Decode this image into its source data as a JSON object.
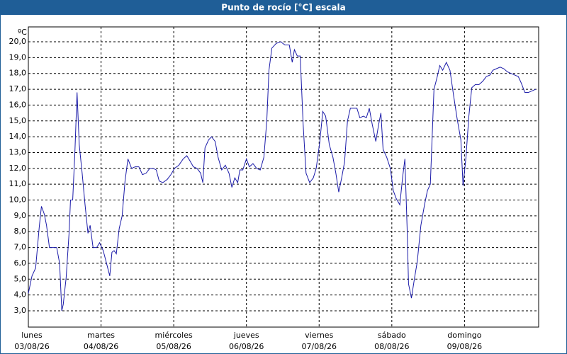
{
  "chart_data": {
    "type": "line",
    "title": "Punto de rocío [°C] escala",
    "y_unit": "ºC",
    "xlim": [
      0,
      7.02
    ],
    "ylim": [
      1.97,
      20.94
    ],
    "xticks": [
      {
        "value": 0,
        "label": [
          "lunes",
          "03/08/26"
        ]
      },
      {
        "value": 1,
        "label": [
          "martes",
          "04/08/26"
        ]
      },
      {
        "value": 2,
        "label": [
          "miércoles",
          "05/08/26"
        ]
      },
      {
        "value": 3,
        "label": [
          "jueves",
          "06/08/26"
        ]
      },
      {
        "value": 4,
        "label": [
          "viernes",
          "07/08/26"
        ]
      },
      {
        "value": 5,
        "label": [
          "sábado",
          "08/08/26"
        ]
      },
      {
        "value": 6,
        "label": [
          "domingo",
          "09/08/26"
        ]
      }
    ],
    "yticks": [
      {
        "value": 3,
        "label": "3,0"
      },
      {
        "value": 4,
        "label": "4,0"
      },
      {
        "value": 5,
        "label": "5,0"
      },
      {
        "value": 6,
        "label": "6,0"
      },
      {
        "value": 7,
        "label": "7,0"
      },
      {
        "value": 8,
        "label": "8,0"
      },
      {
        "value": 9,
        "label": "9,0"
      },
      {
        "value": 10,
        "label": "10,0"
      },
      {
        "value": 11,
        "label": "11,0"
      },
      {
        "value": 12,
        "label": "12,0"
      },
      {
        "value": 13,
        "label": "13,0"
      },
      {
        "value": 14,
        "label": "14,0"
      },
      {
        "value": 15,
        "label": "15,0"
      },
      {
        "value": 16,
        "label": "16,0"
      },
      {
        "value": 17,
        "label": "17,0"
      },
      {
        "value": 18,
        "label": "18,0"
      },
      {
        "value": 19,
        "label": "19,0"
      },
      {
        "value": 20,
        "label": "20,0"
      }
    ],
    "grid": true,
    "series": [
      {
        "color": "#1a1aa8",
        "x": [
          0,
          0.05,
          0.1,
          0.15,
          0.18,
          0.22,
          0.25,
          0.29,
          0.35,
          0.39,
          0.43,
          0.46,
          0.48,
          0.52,
          0.56,
          0.58,
          0.61,
          0.64,
          0.67,
          0.7,
          0.74,
          0.78,
          0.82,
          0.85,
          0.89,
          0.94,
          0.98,
          1.03,
          1.07,
          1.12,
          1.15,
          1.18,
          1.21,
          1.25,
          1.29,
          1.33,
          1.37,
          1.42,
          1.47,
          1.52,
          1.57,
          1.62,
          1.67,
          1.72,
          1.76,
          1.8,
          1.85,
          1.91,
          1.96,
          2.01,
          2.07,
          2.13,
          2.18,
          2.22,
          2.27,
          2.32,
          2.37,
          2.4,
          2.43,
          2.48,
          2.52,
          2.57,
          2.61,
          2.66,
          2.71,
          2.76,
          2.8,
          2.84,
          2.88,
          2.91,
          2.95,
          3.0,
          3.04,
          3.09,
          3.14,
          3.19,
          3.24,
          3.28,
          3.31,
          3.35,
          3.41,
          3.47,
          3.53,
          3.59,
          3.63,
          3.66,
          3.7,
          3.74,
          3.78,
          3.82,
          3.87,
          3.92,
          3.96,
          4.01,
          4.05,
          4.09,
          4.14,
          4.19,
          4.23,
          4.27,
          4.31,
          4.35,
          4.39,
          4.43,
          4.47,
          4.52,
          4.56,
          4.61,
          4.65,
          4.69,
          4.73,
          4.78,
          4.82,
          4.85,
          4.88,
          4.93,
          4.98,
          5.02,
          5.06,
          5.11,
          5.15,
          5.18,
          5.21,
          5.23,
          5.27,
          5.31,
          5.35,
          5.4,
          5.45,
          5.49,
          5.53,
          5.58,
          5.62,
          5.66,
          5.7,
          5.75,
          5.8,
          5.85,
          5.9,
          5.95,
          5.98,
          6.02,
          6.06,
          6.1,
          6.15,
          6.2,
          6.25,
          6.3,
          6.35,
          6.39,
          6.44,
          6.49,
          6.54,
          6.59,
          6.64,
          6.69,
          6.74,
          6.78,
          6.83,
          6.88,
          6.93,
          6.98
        ],
        "values": [
          4.1,
          5.2,
          5.7,
          8.3,
          9.6,
          9.1,
          8.4,
          7.0,
          7.0,
          7.0,
          6.0,
          3.0,
          3.4,
          5.1,
          7.9,
          10.0,
          10.0,
          13.0,
          16.8,
          13.5,
          11.7,
          9.7,
          7.9,
          8.4,
          7.0,
          7.0,
          7.3,
          6.8,
          6.1,
          5.2,
          6.7,
          6.8,
          6.6,
          8.2,
          9.0,
          11.2,
          12.6,
          12.0,
          12.1,
          12.1,
          11.6,
          11.7,
          12.0,
          12.0,
          11.9,
          11.2,
          11.1,
          11.3,
          11.6,
          12.0,
          12.2,
          12.6,
          12.8,
          12.5,
          12.1,
          12.0,
          11.7,
          11.1,
          13.3,
          13.8,
          14.0,
          13.7,
          12.7,
          11.9,
          12.2,
          11.7,
          10.8,
          11.4,
          11.1,
          11.9,
          11.9,
          12.6,
          12.1,
          12.3,
          12.0,
          11.9,
          12.7,
          15.0,
          18.2,
          19.6,
          19.9,
          20.0,
          19.8,
          19.8,
          18.7,
          19.5,
          19.1,
          19.1,
          14.8,
          11.7,
          11.1,
          11.4,
          12.0,
          13.7,
          15.6,
          15.3,
          13.5,
          12.7,
          11.7,
          10.5,
          11.4,
          12.4,
          15.0,
          15.8,
          15.8,
          15.8,
          15.2,
          15.3,
          15.2,
          15.8,
          14.8,
          13.7,
          14.8,
          15.5,
          13.2,
          12.7,
          12.0,
          10.6,
          10.1,
          9.7,
          11.5,
          12.6,
          8.3,
          4.7,
          3.8,
          5.0,
          6.1,
          8.4,
          9.7,
          10.6,
          11.0,
          17.0,
          17.7,
          18.5,
          18.2,
          18.7,
          18.2,
          16.6,
          15.1,
          13.8,
          10.9,
          12.7,
          15.3,
          17.1,
          17.3,
          17.3,
          17.5,
          17.8,
          17.9,
          18.2,
          18.3,
          18.4,
          18.3,
          18.1,
          18.0,
          17.9,
          17.8,
          17.4,
          16.8,
          16.8,
          16.9,
          17.0
        ]
      }
    ]
  }
}
